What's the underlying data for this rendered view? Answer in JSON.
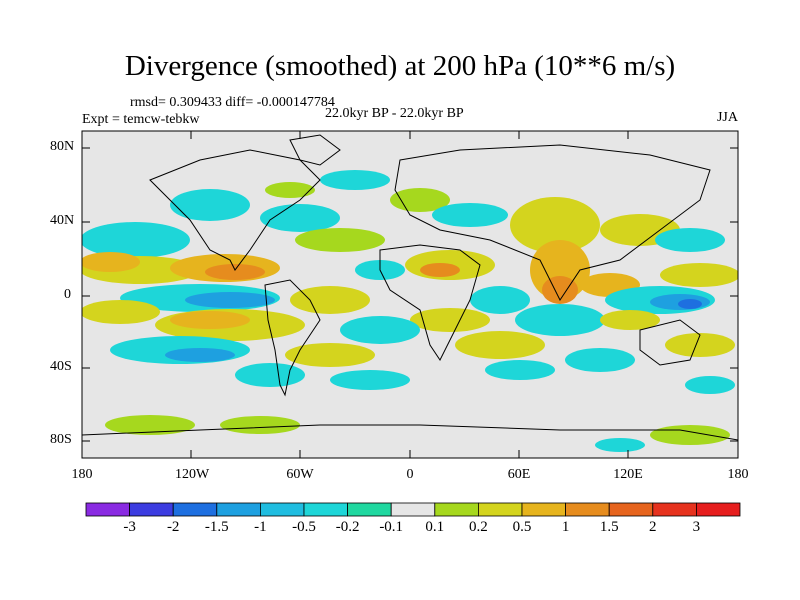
{
  "title": "Divergence (smoothed) at 200 hPa (10**6 m/s)",
  "stats_line": "rmsd= 0.309433 diff= -0.000147784",
  "expt_line": "Expt = temcw-tebkw",
  "period_line": "22.0kyr BP - 22.0kyr BP",
  "season": "JJA",
  "lat_labels": [
    "80N",
    "40N",
    "0",
    "40S",
    "80S"
  ],
  "lon_labels": [
    "180",
    "120W",
    "60W",
    "0",
    "60E",
    "120E",
    "180"
  ],
  "colorbar": {
    "labels": [
      "-3",
      "-2",
      "-1.5",
      "-1",
      "-0.5",
      "-0.2",
      "-0.1",
      "0.1",
      "0.2",
      "0.5",
      "1",
      "1.5",
      "2",
      "3"
    ],
    "colors": [
      "#8a2be2",
      "#3c3ce0",
      "#1e6fe0",
      "#1ea0e0",
      "#20bde0",
      "#1ed6d8",
      "#20d8a0",
      "#e6e6e6",
      "#a6d81e",
      "#d4d41e",
      "#e6b41e",
      "#e68c1e",
      "#e6641e",
      "#e6321e",
      "#e61e1e"
    ]
  },
  "colors": {
    "background": "#e6e6e6",
    "neg_light": "#1ed6d8",
    "neg_mid": "#1ea0e0",
    "neg_strong": "#1e6fe0",
    "neg_green": "#20d8a0",
    "pos_light": "#a6d81e",
    "pos_mid": "#d4d41e",
    "pos_strong": "#e6b41e",
    "pos_hot": "#e68c1e"
  }
}
